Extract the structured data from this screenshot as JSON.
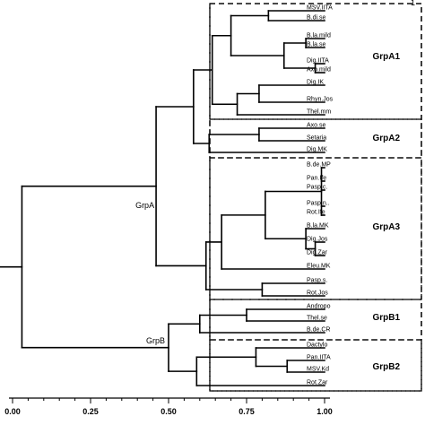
{
  "axis": {
    "ticks": [
      "0.00",
      "0.25",
      "0.50",
      "0.75",
      "1.00"
    ],
    "tick_values": [
      0,
      0.25,
      0.5,
      0.75,
      1.0
    ],
    "range": [
      0,
      1
    ]
  },
  "leaves": [
    "MSV.IITA",
    "B.di.se",
    "B.la.mild",
    "B.la.se",
    "Dig.IITA",
    "Axo.mild",
    "Dig.IK",
    "Rhyn.Jos",
    "Thel.mm",
    "Axo.se",
    "Setaria",
    "Dig.MK",
    "B.de.MP",
    "Pan.Ife",
    "Pasp.c.",
    "Pasp.n..",
    "Rot.Ife",
    "B.la.MK",
    "Dig.Jos",
    "Dig.Zar",
    "Eleu.MK",
    "Pasp.s.",
    "Rot.Jos",
    "Andropo",
    "Thel.se",
    "B.de.CR",
    "Dactylo",
    "Pan.IITA",
    "MSV.Kd",
    "Rot.Zar"
  ],
  "groups": [
    "GrpA1",
    "GrpA2",
    "GrpA3",
    "GrpB1",
    "GrpB2"
  ],
  "clusters": {
    "a": "GrpA",
    "b": "GrpB"
  },
  "corner_mark": "1",
  "tree": {
    "h": 0.03,
    "c": [
      {
        "h": 0.46,
        "n": "a",
        "c": [
          {
            "h": 0.58,
            "c": [
              {
                "h": 0.64,
                "c": [
                  {
                    "h": 0.7,
                    "c": [
                      {
                        "h": 0.82,
                        "c": [
                          {
                            "l": 0
                          },
                          {
                            "l": 1
                          }
                        ]
                      },
                      {
                        "h": 0.87,
                        "c": [
                          {
                            "h": 0.94,
                            "c": [
                              {
                                "l": 2
                              },
                              {
                                "l": 3
                              }
                            ]
                          },
                          {
                            "h": 0.97,
                            "c": [
                              {
                                "l": 4
                              },
                              {
                                "l": 5
                              }
                            ]
                          }
                        ]
                      }
                    ]
                  },
                  {
                    "h": 0.72,
                    "c": [
                      {
                        "h": 0.79,
                        "c": [
                          {
                            "l": 6
                          },
                          {
                            "l": 7
                          }
                        ]
                      },
                      {
                        "l": 8
                      }
                    ]
                  }
                ]
              },
              {
                "h": 0.63,
                "c": [
                  {
                    "h": 0.79,
                    "c": [
                      {
                        "l": 9
                      },
                      {
                        "l": 10
                      }
                    ]
                  },
                  {
                    "l": 11
                  }
                ]
              }
            ]
          },
          {
            "h": 0.62,
            "c": [
              {
                "h": 0.67,
                "c": [
                  {
                    "h": 0.81,
                    "c": [
                      {
                        "h": 0.99,
                        "c": [
                          {
                            "l": 12
                          },
                          {
                            "l": 13
                          },
                          {
                            "l": 14
                          },
                          {
                            "l": 15
                          },
                          {
                            "l": 16
                          }
                        ]
                      },
                      {
                        "h": 0.94,
                        "c": [
                          {
                            "l": 17
                          },
                          {
                            "h": 0.97,
                            "c": [
                              {
                                "l": 18
                              },
                              {
                                "l": 19
                              }
                            ]
                          }
                        ]
                      }
                    ]
                  },
                  {
                    "l": 20
                  }
                ]
              },
              {
                "h": 0.8,
                "c": [
                  {
                    "l": 21
                  },
                  {
                    "l": 22
                  }
                ]
              }
            ]
          }
        ]
      },
      {
        "h": 0.5,
        "n": "b",
        "c": [
          {
            "h": 0.6,
            "c": [
              {
                "h": 0.75,
                "c": [
                  {
                    "l": 23
                  },
                  {
                    "l": 24
                  }
                ]
              },
              {
                "l": 25
              }
            ]
          },
          {
            "h": 0.59,
            "c": [
              {
                "h": 0.78,
                "c": [
                  {
                    "l": 26
                  },
                  {
                    "h": 0.88,
                    "c": [
                      {
                        "l": 27
                      },
                      {
                        "l": 28
                      }
                    ]
                  }
                ]
              },
              {
                "l": 29
              }
            ]
          }
        ]
      }
    ]
  }
}
